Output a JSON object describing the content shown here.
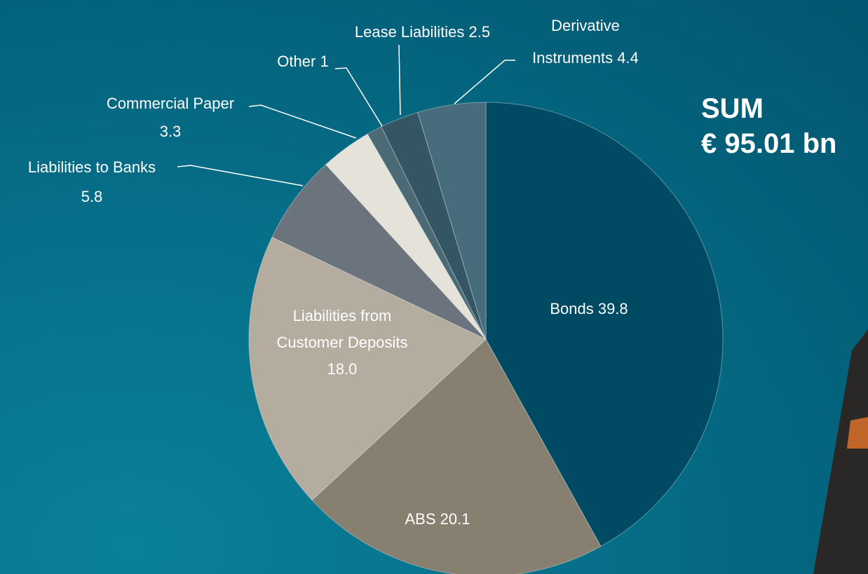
{
  "chart_data": {
    "type": "pie",
    "categories": [
      "Bonds",
      "ABS",
      "Liabilities from Customer Deposits",
      "Liabilities to Banks",
      "Commercial Paper",
      "Other",
      "Lease Liabilities",
      "Derivative Instruments"
    ],
    "values": [
      39.8,
      20.1,
      18.0,
      5.8,
      3.3,
      1,
      2.5,
      4.4
    ],
    "value_labels": [
      "39.8",
      "20.1",
      "18.0",
      "5.8",
      "3.3",
      "1",
      "2.5",
      "4.4"
    ],
    "colors": [
      "#004b63",
      "#877f70",
      "#b4ac9f",
      "#6b747c",
      "#e4e2d9",
      "#4b6a76",
      "#345563",
      "#476d7d"
    ],
    "sum_title": "SUM",
    "sum_value": "€ 95.01 bn"
  }
}
